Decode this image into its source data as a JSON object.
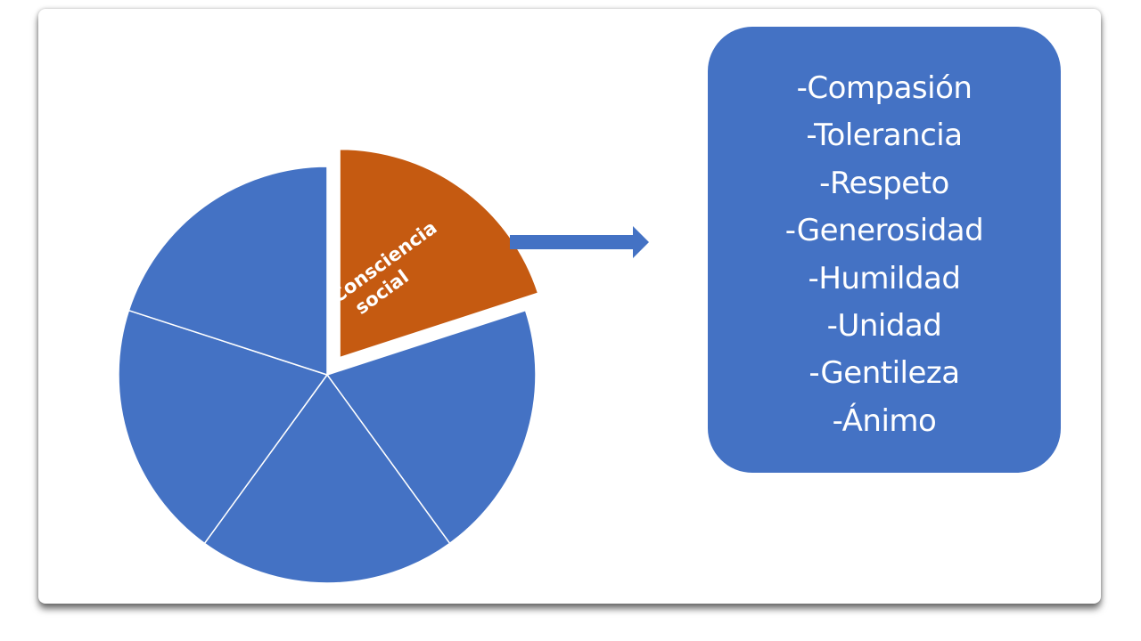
{
  "diagram": {
    "segments": [
      {
        "id": "consciencia-social",
        "label_lines": [
          "Consciencia",
          "social"
        ],
        "color": "#c55a11",
        "exploded": true
      },
      {
        "id": "segment-2",
        "color": "#4472c4"
      },
      {
        "id": "segment-3",
        "color": "#4472c4"
      },
      {
        "id": "segment-4",
        "color": "#4472c4"
      },
      {
        "id": "segment-5",
        "color": "#4472c4"
      }
    ],
    "arrow_color": "#4472c4",
    "box_color": "#4472c4"
  },
  "qualities": [
    "-Compasión",
    "-Tolerancia",
    "-Respeto",
    "-Generosidad",
    "-Humildad",
    "-Unidad",
    "-Gentileza",
    "-Ánimo"
  ]
}
